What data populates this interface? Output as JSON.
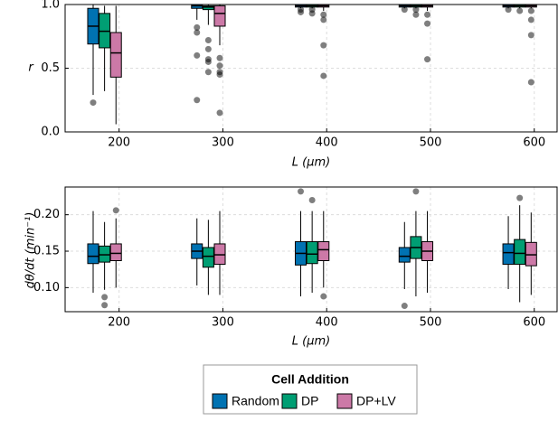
{
  "legend": {
    "title": "Cell Addition",
    "entries": [
      {
        "name": "Random",
        "color": "#0072B2"
      },
      {
        "name": "DP",
        "color": "#009E73"
      },
      {
        "name": "DP+LV",
        "color": "#CC79A7"
      }
    ]
  },
  "chart_data": [
    {
      "type": "box",
      "ylabel": "r",
      "xlabel": "L (μm)",
      "xlim": [
        148,
        622
      ],
      "xticks": [
        200,
        300,
        400,
        500,
        600
      ],
      "ylim": [
        0,
        1.0
      ],
      "yticks": [
        {
          "value": 0,
          "label": "0.0"
        },
        {
          "value": 0.5,
          "label": "0.5"
        },
        {
          "value": 1.0,
          "label": "1.0"
        }
      ],
      "grid": true,
      "series": [
        {
          "x": [
            175,
            275,
            375,
            475,
            575
          ],
          "values": [
            {
              "low": 0.29,
              "q1": 0.69,
              "median": 0.83,
              "q3": 0.97,
              "high": 1.0,
              "outliers": [
                0.23
              ]
            },
            {
              "low": 0.88,
              "q1": 0.97,
              "median": 0.99,
              "q3": 1.0,
              "high": 1.0,
              "outliers": [
                0.82,
                0.78,
                0.6,
                0.25
              ]
            },
            {
              "low": 0.97,
              "q1": 0.98,
              "median": 0.99,
              "q3": 1.0,
              "high": 1.0,
              "outliers": [
                0.96,
                0.94
              ]
            },
            {
              "low": 0.97,
              "q1": 0.98,
              "median": 0.99,
              "q3": 1.0,
              "high": 1.0,
              "outliers": [
                0.96
              ]
            },
            {
              "low": 0.97,
              "q1": 0.98,
              "median": 0.99,
              "q3": 1.0,
              "high": 1.0,
              "outliers": [
                0.96
              ]
            }
          ]
        },
        {
          "x": [
            186,
            286,
            386,
            486,
            586
          ],
          "values": [
            {
              "low": 0.32,
              "q1": 0.66,
              "median": 0.79,
              "q3": 0.93,
              "high": 0.99,
              "outliers": []
            },
            {
              "low": 0.84,
              "q1": 0.96,
              "median": 0.98,
              "q3": 0.99,
              "high": 1.0,
              "outliers": [
                0.72,
                0.65,
                0.57,
                0.55,
                0.47
              ]
            },
            {
              "low": 0.97,
              "q1": 0.98,
              "median": 0.99,
              "q3": 1.0,
              "high": 1.0,
              "outliers": [
                0.96,
                0.93
              ]
            },
            {
              "low": 0.97,
              "q1": 0.98,
              "median": 0.99,
              "q3": 1.0,
              "high": 1.0,
              "outliers": [
                0.96,
                0.92
              ]
            },
            {
              "low": 0.97,
              "q1": 0.98,
              "median": 0.99,
              "q3": 1.0,
              "high": 1.0,
              "outliers": [
                0.95
              ]
            }
          ]
        },
        {
          "x": [
            197,
            297,
            397,
            497,
            597
          ],
          "values": [
            {
              "low": 0.06,
              "q1": 0.43,
              "median": 0.62,
              "q3": 0.78,
              "high": 0.99,
              "outliers": []
            },
            {
              "low": 0.68,
              "q1": 0.83,
              "median": 0.93,
              "q3": 0.99,
              "high": 1.0,
              "outliers": [
                0.58,
                0.52,
                0.47,
                0.45,
                0.15
              ]
            },
            {
              "low": 0.95,
              "q1": 0.98,
              "median": 0.99,
              "q3": 1.0,
              "high": 1.0,
              "outliers": [
                0.92,
                0.88,
                0.68,
                0.44
              ]
            },
            {
              "low": 0.95,
              "q1": 0.98,
              "median": 0.99,
              "q3": 1.0,
              "high": 1.0,
              "outliers": [
                0.92,
                0.85,
                0.57
              ]
            },
            {
              "low": 0.97,
              "q1": 0.98,
              "median": 0.99,
              "q3": 1.0,
              "high": 1.0,
              "outliers": [
                0.95,
                0.88,
                0.76,
                0.39
              ]
            }
          ]
        }
      ]
    },
    {
      "type": "box",
      "ylabel": "dθ/dt (min⁻¹)",
      "xlabel": "L (μm)",
      "xlim": [
        148,
        622
      ],
      "xticks": [
        200,
        300,
        400,
        500,
        600
      ],
      "ylim": [
        0.067,
        0.238
      ],
      "yticks": [
        {
          "value": 0.1,
          "label": "0.10"
        },
        {
          "value": 0.15,
          "label": "0.15"
        },
        {
          "value": 0.2,
          "label": "0.20"
        }
      ],
      "grid": true,
      "series": [
        {
          "x": [
            175,
            275,
            375,
            475,
            575
          ],
          "values": [
            {
              "low": 0.093,
              "q1": 0.133,
              "median": 0.143,
              "q3": 0.16,
              "high": 0.205,
              "outliers": []
            },
            {
              "low": 0.103,
              "q1": 0.14,
              "median": 0.15,
              "q3": 0.16,
              "high": 0.195,
              "outliers": []
            },
            {
              "low": 0.088,
              "q1": 0.131,
              "median": 0.147,
              "q3": 0.163,
              "high": 0.205,
              "outliers": [
                0.232
              ]
            },
            {
              "low": 0.098,
              "q1": 0.135,
              "median": 0.143,
              "q3": 0.155,
              "high": 0.19,
              "outliers": [
                0.075
              ]
            },
            {
              "low": 0.098,
              "q1": 0.132,
              "median": 0.148,
              "q3": 0.16,
              "high": 0.198,
              "outliers": []
            }
          ]
        },
        {
          "x": [
            186,
            286,
            386,
            486,
            586
          ],
          "values": [
            {
              "low": 0.097,
              "q1": 0.135,
              "median": 0.145,
              "q3": 0.157,
              "high": 0.19,
              "outliers": [
                0.087,
                0.076
              ]
            },
            {
              "low": 0.09,
              "q1": 0.128,
              "median": 0.143,
              "q3": 0.155,
              "high": 0.193,
              "outliers": []
            },
            {
              "low": 0.093,
              "q1": 0.133,
              "median": 0.146,
              "q3": 0.163,
              "high": 0.205,
              "outliers": [
                0.22
              ]
            },
            {
              "low": 0.088,
              "q1": 0.14,
              "median": 0.155,
              "q3": 0.17,
              "high": 0.205,
              "outliers": [
                0.232
              ]
            },
            {
              "low": 0.08,
              "q1": 0.132,
              "median": 0.147,
              "q3": 0.166,
              "high": 0.213,
              "outliers": [
                0.223
              ]
            }
          ]
        },
        {
          "x": [
            197,
            297,
            397,
            497,
            597
          ],
          "values": [
            {
              "low": 0.1,
              "q1": 0.137,
              "median": 0.147,
              "q3": 0.16,
              "high": 0.195,
              "outliers": [
                0.206
              ]
            },
            {
              "low": 0.09,
              "q1": 0.132,
              "median": 0.145,
              "q3": 0.16,
              "high": 0.205,
              "outliers": []
            },
            {
              "low": 0.1,
              "q1": 0.137,
              "median": 0.152,
              "q3": 0.163,
              "high": 0.205,
              "outliers": [
                0.088
              ]
            },
            {
              "low": 0.093,
              "q1": 0.137,
              "median": 0.15,
              "q3": 0.163,
              "high": 0.205,
              "outliers": []
            },
            {
              "low": 0.09,
              "q1": 0.13,
              "median": 0.145,
              "q3": 0.162,
              "high": 0.203,
              "outliers": []
            }
          ]
        }
      ]
    }
  ]
}
